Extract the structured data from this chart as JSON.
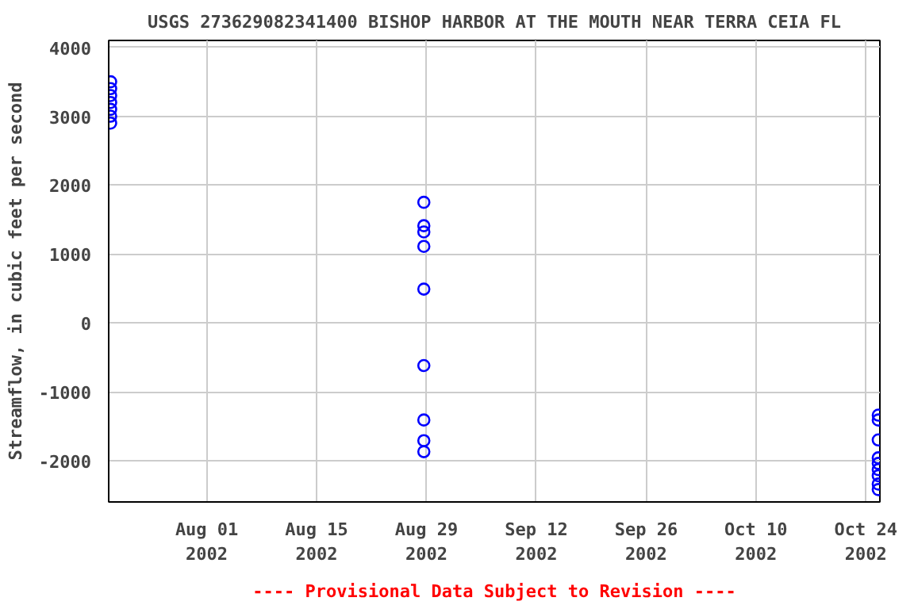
{
  "chart_data": {
    "type": "scatter",
    "title": "USGS 273629082341400 BISHOP HARBOR AT THE MOUTH NEAR TERRA CEIA FL",
    "ylabel": "Streamflow, in cubic feet per second",
    "annotations": [
      "---- Provisional Data Subject to Revision ----"
    ],
    "series": [
      {
        "color": "#0000ff",
        "x": [
          "2002-07-19T18:00",
          "2002-07-19T18:00",
          "2002-07-19T18:00",
          "2002-07-19T18:00",
          "2002-07-19T18:00",
          "2002-07-19T18:00",
          "2002-07-19T18:00",
          "2002-08-28T16:00",
          "2002-08-28T16:00",
          "2002-08-28T16:00",
          "2002-08-28T16:00",
          "2002-08-28T16:00",
          "2002-08-28T16:00",
          "2002-08-28T16:00",
          "2002-08-28T16:00",
          "2002-08-28T16:00",
          "2002-10-25T14:00",
          "2002-10-25T14:00",
          "2002-10-25T14:00",
          "2002-10-25T14:00",
          "2002-10-25T14:00",
          "2002-10-25T14:00",
          "2002-10-25T14:00",
          "2002-10-25T14:00",
          "2002-10-25T14:00"
        ],
        "values": [
          2900,
          3000,
          3100,
          3200,
          3300,
          3400,
          3500,
          1750,
          1410,
          1320,
          1110,
          490,
          -620,
          -1410,
          -1710,
          -1870,
          -1340,
          -1410,
          -1700,
          -1960,
          -2040,
          -2130,
          -2220,
          -2340,
          -2420
        ]
      }
    ],
    "xlim": [
      "2002-07-19T12:00",
      "2002-10-25T19:00"
    ],
    "xticks": [
      {
        "value": "2002-08-01",
        "label": "Aug 01\n2002"
      },
      {
        "value": "2002-08-15",
        "label": "Aug 15\n2002"
      },
      {
        "value": "2002-08-29",
        "label": "Aug 29\n2002"
      },
      {
        "value": "2002-09-12",
        "label": "Sep 12\n2002"
      },
      {
        "value": "2002-09-26",
        "label": "Sep 26\n2002"
      },
      {
        "value": "2002-10-10",
        "label": "Oct 10\n2002"
      },
      {
        "value": "2002-10-24",
        "label": "Oct 24\n2002"
      }
    ],
    "ylim": [
      -2600,
      4100
    ],
    "yticks": [
      -2000,
      -1000,
      0,
      1000,
      2000,
      3000,
      4000
    ],
    "grid": true,
    "marker": "circle"
  }
}
